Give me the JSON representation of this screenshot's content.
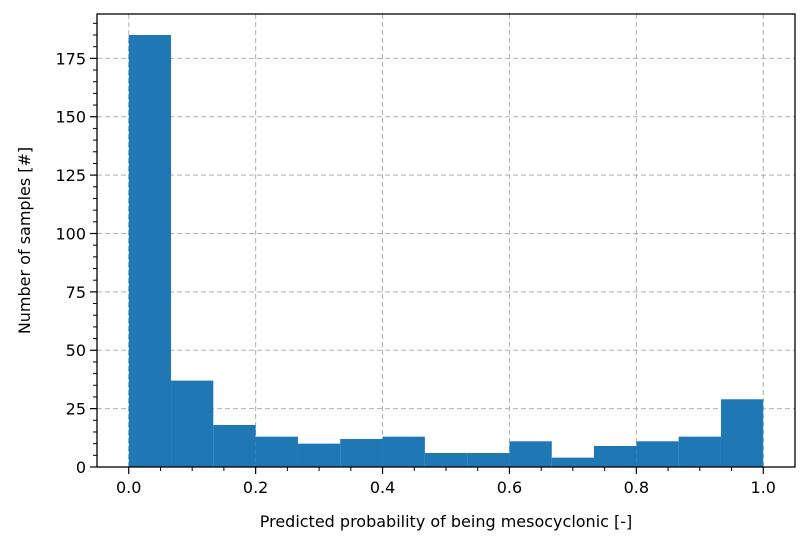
{
  "chart_data": {
    "type": "bar",
    "title": "",
    "xlabel": "Predicted probability of being mesocyclonic [-]",
    "ylabel": "Number of samples [#]",
    "xlim": [
      -0.05,
      1.05
    ],
    "ylim": [
      0,
      194
    ],
    "grid": true,
    "bar_color": "#1f77b4",
    "bin_edges": [
      0.0,
      0.0667,
      0.1333,
      0.2,
      0.2667,
      0.3333,
      0.4,
      0.4667,
      0.5333,
      0.6,
      0.6667,
      0.7333,
      0.8,
      0.8667,
      0.9333,
      1.0
    ],
    "values": [
      185,
      37,
      18,
      13,
      10,
      12,
      13,
      6,
      6,
      11,
      4,
      9,
      11,
      13,
      29
    ],
    "x_ticks": [
      0.0,
      0.2,
      0.4,
      0.6,
      0.8,
      1.0
    ],
    "x_tick_labels": [
      "0.0",
      "0.2",
      "0.4",
      "0.6",
      "0.8",
      "1.0"
    ],
    "y_ticks": [
      0,
      25,
      50,
      75,
      100,
      125,
      150,
      175
    ],
    "y_tick_labels": [
      "0",
      "25",
      "50",
      "75",
      "100",
      "125",
      "150",
      "175"
    ]
  }
}
